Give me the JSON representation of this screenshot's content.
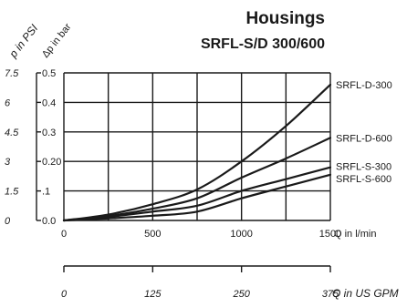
{
  "chart_data": {
    "type": "line",
    "title": "Housings",
    "subtitle": "SRFL-S/D 300/600",
    "xlabel": "Q in l/min",
    "x2label": "Q in US GPM",
    "ylabel": "Δp in bar",
    "y2label": "p in PSI",
    "xlim": [
      0,
      1500
    ],
    "ylim": [
      0,
      0.5
    ],
    "grid": true,
    "x_ticks": [
      "0",
      "500",
      "1000",
      "1500"
    ],
    "x2_ticks": [
      "0",
      "125",
      "250",
      "375"
    ],
    "y_ticks": [
      "0.0",
      ".1",
      "0.20",
      "0.3",
      "0.4",
      "0.5"
    ],
    "y2_ticks": [
      "0",
      "1.5",
      "3",
      "4.5",
      "6",
      "7.5"
    ],
    "series": [
      {
        "name": "SRFL-D-300",
        "x": [
          0,
          250,
          500,
          750,
          1000,
          1250,
          1500
        ],
        "y": [
          0,
          0.02,
          0.055,
          0.105,
          0.2,
          0.32,
          0.46
        ]
      },
      {
        "name": "SRFL-D-600",
        "x": [
          0,
          250,
          500,
          750,
          1000,
          1250,
          1500
        ],
        "y": [
          0,
          0.015,
          0.04,
          0.075,
          0.145,
          0.21,
          0.28
        ]
      },
      {
        "name": "SRFL-S-300",
        "x": [
          0,
          250,
          500,
          750,
          1000,
          1250,
          1500
        ],
        "y": [
          0,
          0.012,
          0.03,
          0.05,
          0.1,
          0.14,
          0.18
        ]
      },
      {
        "name": "SRFL-S-600",
        "x": [
          0,
          250,
          500,
          750,
          1000,
          1250,
          1500
        ],
        "y": [
          0,
          0.007,
          0.016,
          0.03,
          0.075,
          0.115,
          0.155
        ]
      }
    ]
  }
}
